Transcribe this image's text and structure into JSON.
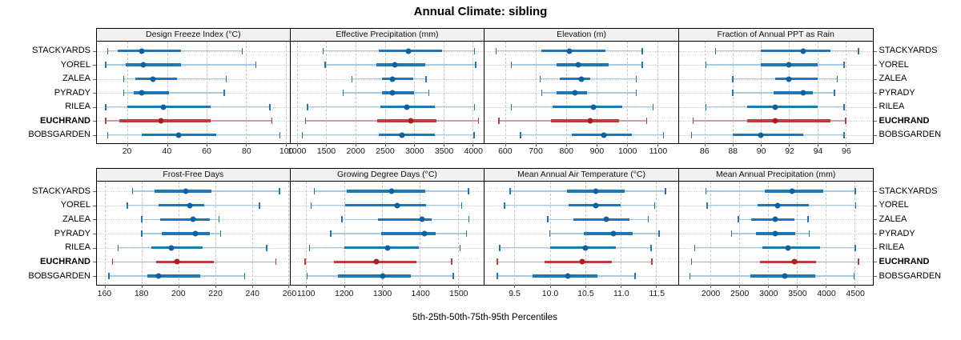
{
  "title": "Annual Climate: sibling",
  "caption": "5th-25th-50th-75th-95th Percentiles",
  "locations": [
    {
      "name": "STACKYARDS",
      "highlight": false
    },
    {
      "name": "YOREL",
      "highlight": false
    },
    {
      "name": "ZALEA",
      "highlight": false
    },
    {
      "name": "PYRADY",
      "highlight": false
    },
    {
      "name": "RILEA",
      "highlight": false
    },
    {
      "name": "EUCHRAND",
      "highlight": true
    },
    {
      "name": "BOBSGARDEN",
      "highlight": false
    }
  ],
  "colors": {
    "blue_light": "#A6CAE3",
    "blue_mid": "#1F77B4",
    "blue_dark": "#10619F",
    "red_light": "#D49C9C",
    "red_mid": "#BE3C3C",
    "red_dark": "#AA1F1F",
    "gridline": "#C6C6C6",
    "strip_bg": "#F0F0F0",
    "panel_border": "#000000",
    "tick": "#666666"
  },
  "chart_data": [
    {
      "type": "scatter",
      "subtype": "percentile-interval-dotplot",
      "title": "Design Freeze Index (°C)",
      "percentiles": [
        5,
        25,
        50,
        75,
        95
      ],
      "x_ticks": [
        20,
        40,
        60,
        80,
        100
      ],
      "x_tick_labels": [
        "20",
        "40",
        "60",
        "80",
        "100"
      ],
      "x_domain": [
        4.5,
        102
      ],
      "grid": "dashed",
      "legend": "none",
      "series": [
        {
          "name": "STACKYARDS",
          "values": [
            10,
            15,
            27,
            47,
            78
          ]
        },
        {
          "name": "YOREL",
          "values": [
            9,
            19,
            28,
            47,
            85
          ]
        },
        {
          "name": "ZALEA",
          "values": [
            18,
            24,
            33,
            45,
            70
          ]
        },
        {
          "name": "PYRADY",
          "values": [
            18,
            23,
            27,
            41,
            69
          ]
        },
        {
          "name": "RILEA",
          "values": [
            9,
            20,
            38,
            62,
            92
          ]
        },
        {
          "name": "EUCHRAND",
          "values": [
            9,
            16,
            37,
            62,
            93
          ]
        },
        {
          "name": "BOBSGARDEN",
          "values": [
            10,
            27,
            46,
            65,
            97
          ]
        }
      ]
    },
    {
      "type": "scatter",
      "subtype": "percentile-interval-dotplot",
      "title": "Effective Precipitation (mm)",
      "percentiles": [
        5,
        25,
        50,
        75,
        95
      ],
      "x_ticks": [
        1000,
        1500,
        2000,
        2500,
        3000,
        3500,
        4000
      ],
      "x_tick_labels": [
        "1000",
        "1500",
        "2000",
        "2500",
        "3000",
        "3500",
        "4000"
      ],
      "x_domain": [
        890,
        4190
      ],
      "grid": "dashed",
      "legend": "none",
      "series": [
        {
          "name": "STACKYARDS",
          "values": [
            1450,
            2400,
            2900,
            3480,
            4030
          ]
        },
        {
          "name": "YOREL",
          "values": [
            1480,
            2360,
            2670,
            3190,
            4050
          ]
        },
        {
          "name": "ZALEA",
          "values": [
            1940,
            2450,
            2630,
            2980,
            3200
          ]
        },
        {
          "name": "PYRADY",
          "values": [
            1790,
            2450,
            2630,
            3000,
            3250
          ]
        },
        {
          "name": "RILEA",
          "values": [
            1180,
            2430,
            2880,
            3360,
            4030
          ]
        },
        {
          "name": "EUCHRAND",
          "values": [
            1150,
            2370,
            2950,
            3380,
            4100
          ]
        },
        {
          "name": "BOBSGARDEN",
          "values": [
            1090,
            2400,
            2790,
            3360,
            4020
          ]
        }
      ]
    },
    {
      "type": "scatter",
      "subtype": "percentile-interval-dotplot",
      "title": "Elevation (m)",
      "percentiles": [
        5,
        25,
        50,
        75,
        95
      ],
      "x_ticks": [
        600,
        700,
        800,
        900,
        1000,
        1100
      ],
      "x_tick_labels": [
        "600",
        "700",
        "800",
        "900",
        "1000",
        "1100"
      ],
      "x_domain": [
        533,
        1168
      ],
      "grid": "dashed",
      "legend": "none",
      "series": [
        {
          "name": "STACKYARDS",
          "values": [
            570,
            720,
            810,
            930,
            1050
          ]
        },
        {
          "name": "YOREL",
          "values": [
            620,
            770,
            840,
            940,
            1050
          ]
        },
        {
          "name": "ZALEA",
          "values": [
            715,
            780,
            850,
            880,
            1030
          ]
        },
        {
          "name": "PYRADY",
          "values": [
            720,
            770,
            830,
            870,
            1030
          ]
        },
        {
          "name": "RILEA",
          "values": [
            620,
            755,
            890,
            985,
            1085
          ]
        },
        {
          "name": "EUCHRAND",
          "values": [
            580,
            750,
            880,
            975,
            1065
          ]
        },
        {
          "name": "BOBSGARDEN",
          "values": [
            650,
            820,
            925,
            1015,
            1120
          ]
        }
      ]
    },
    {
      "type": "scatter",
      "subtype": "percentile-interval-dotplot",
      "title": "Fraction of Annual PPT as Rain",
      "percentiles": [
        5,
        25,
        50,
        75,
        95
      ],
      "x_ticks": [
        86,
        88,
        90,
        92,
        94,
        96
      ],
      "x_tick_labels": [
        "86",
        "88",
        "90",
        "92",
        "94",
        "96"
      ],
      "x_domain": [
        84.2,
        97.9
      ],
      "grid": "dashed",
      "legend": "none",
      "series": [
        {
          "name": "STACKYARDS",
          "values": [
            86.8,
            90.0,
            93.0,
            94.9,
            96.9
          ]
        },
        {
          "name": "YOREL",
          "values": [
            86.1,
            90.0,
            92.0,
            94.0,
            95.9
          ]
        },
        {
          "name": "ZALEA",
          "values": [
            88.0,
            91.0,
            92.0,
            94.0,
            95.4
          ]
        },
        {
          "name": "PYRADY",
          "values": [
            88.0,
            90.9,
            93.0,
            93.7,
            95.2
          ]
        },
        {
          "name": "RILEA",
          "values": [
            86.1,
            89.0,
            91.0,
            94.0,
            95.9
          ]
        },
        {
          "name": "EUCHRAND",
          "values": [
            85.2,
            89.0,
            91.0,
            94.9,
            96.0
          ]
        },
        {
          "name": "BOBSGARDEN",
          "values": [
            85.1,
            88.0,
            90.0,
            93.0,
            95.9
          ]
        }
      ]
    },
    {
      "type": "scatter",
      "subtype": "percentile-interval-dotplot",
      "title": "Frost-Free Days",
      "percentiles": [
        5,
        25,
        50,
        75,
        95
      ],
      "x_ticks": [
        160,
        180,
        200,
        220,
        240,
        260
      ],
      "x_tick_labels": [
        "160",
        "180",
        "200",
        "220",
        "240",
        "260"
      ],
      "x_domain": [
        155.5,
        260.5
      ],
      "grid": "dashed",
      "legend": "none",
      "series": [
        {
          "name": "STACKYARDS",
          "values": [
            175,
            187,
            204,
            218,
            255
          ]
        },
        {
          "name": "YOREL",
          "values": [
            172,
            189,
            206,
            214,
            244
          ]
        },
        {
          "name": "ZALEA",
          "values": [
            180,
            190,
            208,
            217,
            222
          ]
        },
        {
          "name": "PYRADY",
          "values": [
            180,
            191,
            209,
            217,
            223
          ]
        },
        {
          "name": "RILEA",
          "values": [
            167,
            185,
            196,
            213,
            248
          ]
        },
        {
          "name": "EUCHRAND",
          "values": [
            164,
            188,
            199,
            219,
            253
          ]
        },
        {
          "name": "BOBSGARDEN",
          "values": [
            162,
            183,
            189,
            212,
            236
          ]
        }
      ]
    },
    {
      "type": "scatter",
      "subtype": "percentile-interval-dotplot",
      "title": "Growing Degree Days (°C)",
      "percentiles": [
        5,
        25,
        50,
        75,
        95
      ],
      "x_ticks": [
        1100,
        1200,
        1300,
        1400,
        1500
      ],
      "x_tick_labels": [
        "1100",
        "1200",
        "1300",
        "1400",
        "1500"
      ],
      "x_domain": [
        1059,
        1568
      ],
      "grid": "dashed",
      "legend": "none",
      "series": [
        {
          "name": "STACKYARDS",
          "values": [
            1122,
            1208,
            1325,
            1413,
            1527
          ]
        },
        {
          "name": "YOREL",
          "values": [
            1114,
            1203,
            1341,
            1415,
            1510
          ]
        },
        {
          "name": "ZALEA",
          "values": [
            1195,
            1290,
            1405,
            1431,
            1529
          ]
        },
        {
          "name": "PYRADY",
          "values": [
            1165,
            1297,
            1412,
            1442,
            1522
          ]
        },
        {
          "name": "RILEA",
          "values": [
            1109,
            1201,
            1314,
            1396,
            1505
          ]
        },
        {
          "name": "EUCHRAND",
          "values": [
            1098,
            1174,
            1285,
            1391,
            1483
          ]
        },
        {
          "name": "BOBSGARDEN",
          "values": [
            1103,
            1184,
            1302,
            1376,
            1487
          ]
        }
      ]
    },
    {
      "type": "scatter",
      "subtype": "percentile-interval-dotplot",
      "title": "Mean Annual Air Temperature (°C)",
      "percentiles": [
        5,
        25,
        50,
        75,
        95
      ],
      "x_ticks": [
        9.5,
        10.0,
        10.5,
        11.0,
        11.5
      ],
      "x_tick_labels": [
        "9.5",
        "10.0",
        "10.5",
        "11.0",
        "11.5"
      ],
      "x_domain": [
        9.08,
        11.81
      ],
      "grid": "dashed",
      "legend": "none",
      "series": [
        {
          "name": "STACKYARDS",
          "values": [
            9.44,
            10.24,
            10.65,
            11.06,
            11.63
          ]
        },
        {
          "name": "YOREL",
          "values": [
            9.36,
            10.26,
            10.65,
            11.0,
            11.48
          ]
        },
        {
          "name": "ZALEA",
          "values": [
            9.97,
            10.33,
            10.8,
            11.12,
            11.39
          ]
        },
        {
          "name": "PYRADY",
          "values": [
            10.0,
            10.48,
            10.9,
            11.17,
            11.54
          ]
        },
        {
          "name": "RILEA",
          "values": [
            9.29,
            10.0,
            10.5,
            10.93,
            11.43
          ]
        },
        {
          "name": "EUCHRAND",
          "values": [
            9.26,
            9.92,
            10.46,
            10.87,
            11.44
          ]
        },
        {
          "name": "BOBSGARDEN",
          "values": [
            9.26,
            9.75,
            10.25,
            10.67,
            11.2
          ]
        }
      ]
    },
    {
      "type": "scatter",
      "subtype": "percentile-interval-dotplot",
      "title": "Mean Annual Precipitation (mm)",
      "percentiles": [
        5,
        25,
        50,
        75,
        95
      ],
      "x_ticks": [
        2000,
        2500,
        3000,
        3500,
        4000,
        4500
      ],
      "x_tick_labels": [
        "2000",
        "2500",
        "3000",
        "3500",
        "4000",
        "4500"
      ],
      "x_domain": [
        1450,
        4810
      ],
      "grid": "dashed",
      "legend": "none",
      "series": [
        {
          "name": "STACKYARDS",
          "values": [
            1920,
            2940,
            3410,
            3950,
            4510
          ]
        },
        {
          "name": "YOREL",
          "values": [
            1940,
            2820,
            3160,
            3710,
            4520
          ]
        },
        {
          "name": "ZALEA",
          "values": [
            2480,
            2710,
            3120,
            3450,
            3690
          ]
        },
        {
          "name": "PYRADY",
          "values": [
            2360,
            2780,
            3120,
            3470,
            3710
          ]
        },
        {
          "name": "RILEA",
          "values": [
            1720,
            2900,
            3340,
            3900,
            4510
          ]
        },
        {
          "name": "EUCHRAND",
          "values": [
            1670,
            2860,
            3460,
            3830,
            4570
          ]
        },
        {
          "name": "BOBSGARDEN",
          "values": [
            1640,
            2690,
            3290,
            3820,
            4490
          ]
        }
      ]
    }
  ]
}
